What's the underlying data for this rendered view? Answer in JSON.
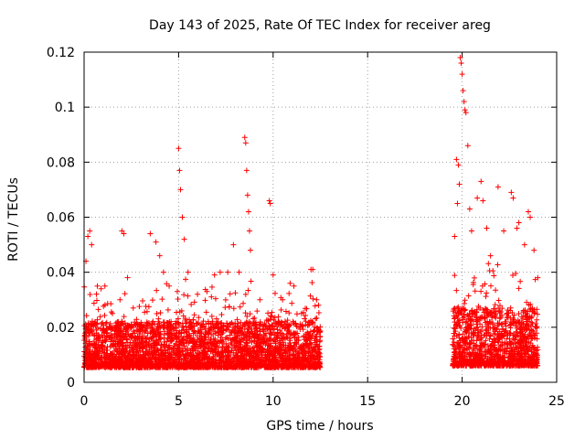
{
  "chart_data": {
    "type": "scatter",
    "title": "Day 143 of 2025, Rate Of TEC Index for receiver areg",
    "xlabel": "GPS time / hours",
    "ylabel": "ROTI / TECUs",
    "xlim": [
      0,
      25
    ],
    "ylim": [
      0,
      0.12
    ],
    "x_ticks": [
      0,
      5,
      10,
      15,
      20,
      25
    ],
    "x_tick_labels": [
      "0",
      "5",
      "10",
      "15",
      "20",
      "25"
    ],
    "y_ticks": [
      0,
      0.02,
      0.04,
      0.06,
      0.08,
      0.1,
      0.12
    ],
    "y_tick_labels": [
      "0",
      "0.02",
      "0.04",
      "0.06",
      "0.08",
      "0.1",
      "0.12"
    ],
    "grid": true,
    "marker": "plus",
    "color": "#ff0000",
    "data_segments": [
      {
        "x_start": 0.0,
        "x_end": 12.5,
        "baseline_typical": 0.012,
        "note": "dense observations"
      },
      {
        "x_start": 19.5,
        "x_end": 24.0,
        "baseline_typical": 0.015,
        "note": "dense observations"
      }
    ],
    "series": [
      {
        "name": "ROTI",
        "points": [
          [
            0.1,
            0.044
          ],
          [
            0.2,
            0.053
          ],
          [
            0.3,
            0.055
          ],
          [
            0.4,
            0.05
          ],
          [
            0.7,
            0.035
          ],
          [
            0.9,
            0.034
          ],
          [
            1.1,
            0.035
          ],
          [
            1.5,
            0.025
          ],
          [
            1.9,
            0.03
          ],
          [
            2.0,
            0.055
          ],
          [
            2.1,
            0.054
          ],
          [
            2.3,
            0.038
          ],
          [
            2.6,
            0.027
          ],
          [
            3.0,
            0.02
          ],
          [
            3.5,
            0.054
          ],
          [
            3.8,
            0.051
          ],
          [
            4.0,
            0.046
          ],
          [
            4.2,
            0.04
          ],
          [
            4.5,
            0.035
          ],
          [
            5.0,
            0.085
          ],
          [
            5.05,
            0.077
          ],
          [
            5.1,
            0.07
          ],
          [
            5.2,
            0.06
          ],
          [
            5.3,
            0.052
          ],
          [
            5.5,
            0.04
          ],
          [
            6.0,
            0.032
          ],
          [
            6.5,
            0.033
          ],
          [
            6.9,
            0.039
          ],
          [
            7.2,
            0.04
          ],
          [
            7.6,
            0.04
          ],
          [
            7.9,
            0.05
          ],
          [
            8.2,
            0.04
          ],
          [
            8.5,
            0.089
          ],
          [
            8.55,
            0.087
          ],
          [
            8.6,
            0.077
          ],
          [
            8.65,
            0.068
          ],
          [
            8.7,
            0.062
          ],
          [
            8.75,
            0.055
          ],
          [
            8.8,
            0.048
          ],
          [
            9.3,
            0.03
          ],
          [
            9.8,
            0.066
          ],
          [
            9.85,
            0.065
          ],
          [
            10.0,
            0.039
          ],
          [
            10.5,
            0.03
          ],
          [
            10.9,
            0.036
          ],
          [
            11.1,
            0.035
          ],
          [
            11.5,
            0.025
          ],
          [
            12.0,
            0.041
          ],
          [
            12.1,
            0.041
          ],
          [
            12.3,
            0.03
          ],
          [
            12.4,
            0.028
          ],
          [
            19.6,
            0.053
          ],
          [
            19.7,
            0.081
          ],
          [
            19.8,
            0.079
          ],
          [
            19.9,
            0.118
          ],
          [
            19.95,
            0.116
          ],
          [
            20.0,
            0.112
          ],
          [
            20.05,
            0.106
          ],
          [
            20.1,
            0.102
          ],
          [
            20.15,
            0.099
          ],
          [
            20.2,
            0.098
          ],
          [
            20.3,
            0.086
          ],
          [
            19.75,
            0.065
          ],
          [
            19.85,
            0.072
          ],
          [
            20.4,
            0.063
          ],
          [
            20.5,
            0.055
          ],
          [
            20.8,
            0.067
          ],
          [
            21.0,
            0.073
          ],
          [
            21.1,
            0.066
          ],
          [
            21.3,
            0.056
          ],
          [
            21.5,
            0.046
          ],
          [
            21.9,
            0.071
          ],
          [
            22.2,
            0.055
          ],
          [
            22.6,
            0.069
          ],
          [
            22.7,
            0.067
          ],
          [
            22.9,
            0.056
          ],
          [
            23.0,
            0.058
          ],
          [
            23.3,
            0.05
          ],
          [
            23.5,
            0.062
          ],
          [
            23.6,
            0.06
          ],
          [
            23.8,
            0.048
          ],
          [
            24.0,
            0.038
          ]
        ]
      }
    ]
  }
}
